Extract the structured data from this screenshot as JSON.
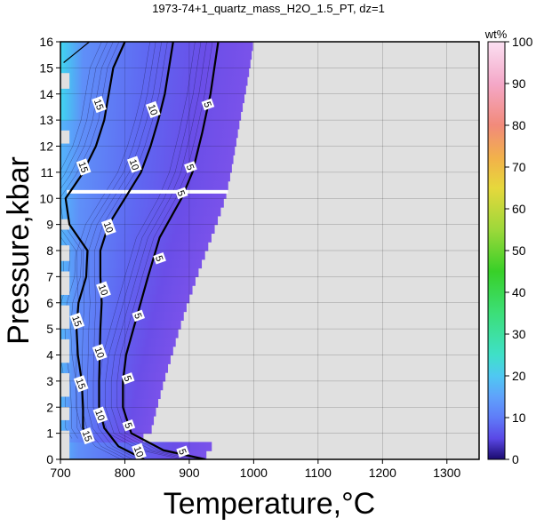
{
  "chart_data": {
    "type": "heatmap",
    "title": "1973-74+1_quartz_mass_H2O_1.5_PT, dz=1",
    "xlabel": "Temperature,°C",
    "ylabel": "Pressure,kbar",
    "xlim": [
      700,
      1350
    ],
    "ylim": [
      0,
      16
    ],
    "x_ticks": [
      "700",
      "800",
      "900",
      "1000",
      "1100",
      "1200",
      "1300"
    ],
    "y_ticks": [
      "0",
      "1",
      "2",
      "3",
      "4",
      "5",
      "6",
      "7",
      "8",
      "9",
      "10",
      "11",
      "12",
      "13",
      "14",
      "15",
      "16"
    ],
    "grid": true,
    "background_color": "#e0e0e0",
    "colorbar": {
      "label": "wt%",
      "range": [
        0,
        100
      ],
      "ticks": [
        "0",
        "10",
        "20",
        "30",
        "40",
        "50",
        "60",
        "70",
        "80",
        "90",
        "100"
      ],
      "colors": [
        {
          "v": 0,
          "c": "#1a0a6e"
        },
        {
          "v": 5,
          "c": "#5a48e6"
        },
        {
          "v": 10,
          "c": "#5f7cf8"
        },
        {
          "v": 15,
          "c": "#5fa2fb"
        },
        {
          "v": 20,
          "c": "#4fc8f2"
        },
        {
          "v": 25,
          "c": "#3fe0c8"
        },
        {
          "v": 35,
          "c": "#3cdf78"
        },
        {
          "v": 45,
          "c": "#38d028"
        },
        {
          "v": 55,
          "c": "#9dd83a"
        },
        {
          "v": 65,
          "c": "#e6d83c"
        },
        {
          "v": 72,
          "c": "#f2b24a"
        },
        {
          "v": 80,
          "c": "#f28a7a"
        },
        {
          "v": 90,
          "c": "#f4a8c8"
        },
        {
          "v": 100,
          "c": "#fbe0f2"
        }
      ]
    },
    "field_boundary": [
      {
        "p": 16,
        "t_max": 1000
      },
      {
        "p": 15,
        "t_max": 994
      },
      {
        "p": 14,
        "t_max": 987
      },
      {
        "p": 13,
        "t_max": 979
      },
      {
        "p": 12,
        "t_max": 972
      },
      {
        "p": 11,
        "t_max": 965
      },
      {
        "p": 10,
        "t_max": 956
      },
      {
        "p": 9,
        "t_max": 942
      },
      {
        "p": 8,
        "t_max": 927
      },
      {
        "p": 7,
        "t_max": 912
      },
      {
        "p": 6,
        "t_max": 898
      },
      {
        "p": 5,
        "t_max": 885
      },
      {
        "p": 4,
        "t_max": 873
      },
      {
        "p": 3,
        "t_max": 861
      },
      {
        "p": 2,
        "t_max": 850
      },
      {
        "p": 1,
        "t_max": 840
      },
      {
        "p": 0.7,
        "t_max": 820
      }
    ],
    "series": [
      {
        "name": "5",
        "points": [
          {
            "t": 925,
            "p": 0
          },
          {
            "t": 860,
            "p": 0.35
          },
          {
            "t": 810,
            "p": 1
          },
          {
            "t": 797,
            "p": 2
          },
          {
            "t": 797,
            "p": 3
          },
          {
            "t": 802,
            "p": 4
          },
          {
            "t": 819,
            "p": 5.5
          },
          {
            "t": 836,
            "p": 7
          },
          {
            "t": 854,
            "p": 8.5
          },
          {
            "t": 888,
            "p": 10
          },
          {
            "t": 905,
            "p": 11
          },
          {
            "t": 920,
            "p": 12.5
          },
          {
            "t": 933,
            "p": 14
          },
          {
            "t": 945,
            "p": 16
          }
        ]
      },
      {
        "name": "10",
        "points": [
          {
            "t": 830,
            "p": 0
          },
          {
            "t": 790,
            "p": 0.5
          },
          {
            "t": 768,
            "p": 1.2
          },
          {
            "t": 760,
            "p": 2
          },
          {
            "t": 760,
            "p": 3
          },
          {
            "t": 761,
            "p": 4
          },
          {
            "t": 762,
            "p": 5
          },
          {
            "t": 764,
            "p": 6
          },
          {
            "t": 762,
            "p": 7
          },
          {
            "t": 762,
            "p": 8
          },
          {
            "t": 775,
            "p": 9
          },
          {
            "t": 800,
            "p": 10
          },
          {
            "t": 825,
            "p": 11
          },
          {
            "t": 840,
            "p": 12
          },
          {
            "t": 852,
            "p": 13
          },
          {
            "t": 862,
            "p": 14
          },
          {
            "t": 875,
            "p": 16
          }
        ]
      },
      {
        "name": "15",
        "points": [
          {
            "t": 745,
            "p": 0.8
          },
          {
            "t": 735,
            "p": 1.2
          },
          {
            "t": 735,
            "p": 2
          },
          {
            "t": 733,
            "p": 3
          },
          {
            "t": 727,
            "p": 4
          },
          {
            "t": 725,
            "p": 5
          },
          {
            "t": 728,
            "p": 6
          },
          {
            "t": 740,
            "p": 7
          },
          {
            "t": 742,
            "p": 8
          },
          {
            "t": 714,
            "p": 9
          },
          {
            "t": 708,
            "p": 10
          },
          {
            "t": 733,
            "p": 10.9
          },
          {
            "t": 755,
            "p": 12
          },
          {
            "t": 768,
            "p": 13
          },
          {
            "t": 775,
            "p": 14
          },
          {
            "t": 782,
            "p": 15
          },
          {
            "t": 800,
            "p": 16
          }
        ]
      },
      {
        "name": "",
        "points": [
          {
            "t": 705,
            "p": 15.2
          },
          {
            "t": 725,
            "p": 15.6
          },
          {
            "t": 745,
            "p": 16
          }
        ]
      }
    ],
    "contour_labels": [
      {
        "text": "5",
        "t": 890,
        "p": 0.3
      },
      {
        "text": "10",
        "t": 822,
        "p": 0.3
      },
      {
        "text": "15",
        "t": 742,
        "p": 0.9
      },
      {
        "text": "5",
        "t": 806,
        "p": 1.3
      },
      {
        "text": "10",
        "t": 762,
        "p": 1.7
      },
      {
        "text": "15",
        "t": 732,
        "p": 2.9
      },
      {
        "text": "5",
        "t": 805,
        "p": 3.1
      },
      {
        "text": "10",
        "t": 761,
        "p": 4.1
      },
      {
        "text": "15",
        "t": 726,
        "p": 5.3
      },
      {
        "text": "5",
        "t": 821,
        "p": 5.5
      },
      {
        "text": "10",
        "t": 767,
        "p": 6.5
      },
      {
        "text": "5",
        "t": 854,
        "p": 7.7
      },
      {
        "text": "10",
        "t": 775,
        "p": 8.9
      },
      {
        "text": "5",
        "t": 888,
        "p": 10.2
      },
      {
        "text": "5",
        "t": 902,
        "p": 11.2
      },
      {
        "text": "10",
        "t": 815,
        "p": 11.3
      },
      {
        "text": "15",
        "t": 736,
        "p": 11.2
      },
      {
        "text": "10",
        "t": 844,
        "p": 13.4
      },
      {
        "text": "15",
        "t": 760,
        "p": 13.6
      },
      {
        "text": "5",
        "t": 929,
        "p": 13.6
      }
    ]
  }
}
